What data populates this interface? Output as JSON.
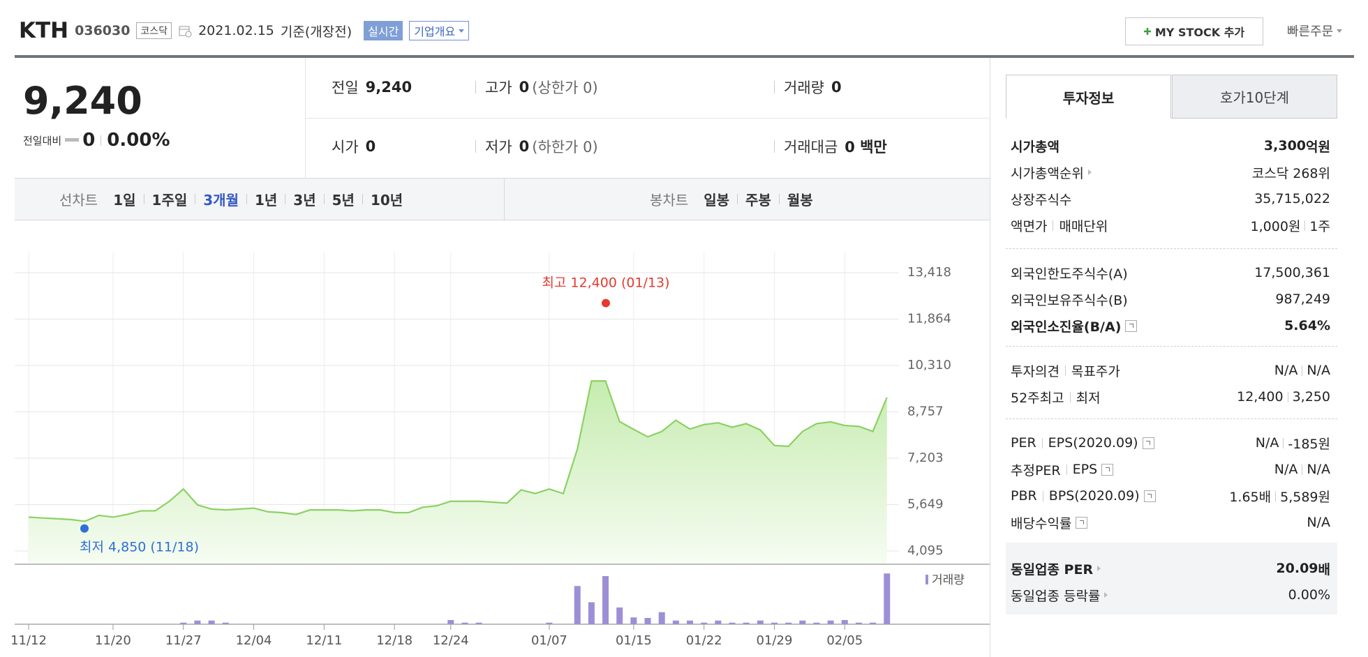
{
  "header": {
    "name": "KTH",
    "code": "036030",
    "market": "코스닥",
    "date": "2021.02.15",
    "basis": "기준(개장전)",
    "realtime": "실시간",
    "overview": "기업개요",
    "my_stock": "MY STOCK 추가",
    "quick_order": "빠른주문"
  },
  "quote": {
    "price": "9,240",
    "change_label": "전일대비",
    "change": "0",
    "change_rate": "0.00%",
    "rows": [
      [
        {
          "label": "전일",
          "value": "9,240"
        },
        {
          "label": "고가",
          "value": "0",
          "note": "(상한가 0)"
        },
        {
          "label": "거래량",
          "value": "0"
        }
      ],
      [
        {
          "label": "시가",
          "value": "0"
        },
        {
          "label": "저가",
          "value": "0",
          "note": "(하한가 0)"
        },
        {
          "label": "거래대금",
          "value": "0 백만"
        }
      ]
    ]
  },
  "periods": {
    "line_label": "선차트",
    "line": [
      {
        "label": "1일"
      },
      {
        "label": "1주일"
      },
      {
        "label": "3개월",
        "selected": true
      },
      {
        "label": "1년"
      },
      {
        "label": "3년"
      },
      {
        "label": "5년"
      },
      {
        "label": "10년"
      }
    ],
    "candle_label": "봉차트",
    "candle": [
      {
        "label": "일봉"
      },
      {
        "label": "주봉"
      },
      {
        "label": "월봉"
      }
    ]
  },
  "chart_data": {
    "type": "line",
    "color": "#8bd163",
    "categories": [
      "11/12",
      null,
      null,
      null,
      null,
      null,
      "11/20",
      null,
      null,
      null,
      null,
      "11/27",
      null,
      null,
      null,
      null,
      "12/04",
      null,
      null,
      null,
      null,
      "12/11",
      null,
      null,
      null,
      null,
      "12/18",
      null,
      null,
      null,
      "12/24",
      null,
      null,
      null,
      null,
      null,
      null,
      "01/07",
      null,
      null,
      null,
      null,
      null,
      "01/15",
      null,
      null,
      null,
      null,
      "01/22",
      null,
      null,
      null,
      null,
      "01/29",
      null,
      null,
      null,
      null,
      "02/05",
      null,
      null,
      null
    ],
    "values": [
      5230,
      5200,
      5175,
      5150,
      5090,
      5290,
      5230,
      5320,
      5440,
      5440,
      5760,
      6170,
      5640,
      5500,
      5470,
      5500,
      5530,
      5410,
      5380,
      5320,
      5470,
      5470,
      5470,
      5440,
      5470,
      5470,
      5380,
      5380,
      5560,
      5610,
      5760,
      5760,
      5760,
      5730,
      5700,
      6140,
      6020,
      6170,
      6020,
      7510,
      9790,
      9790,
      8430,
      8170,
      7920,
      8100,
      8475,
      8180,
      8330,
      8390,
      8240,
      8360,
      8150,
      7630,
      7600,
      8100,
      8360,
      8420,
      8300,
      8270,
      8100,
      9240
    ],
    "ylim": [
      4095,
      13418
    ],
    "yticks": [
      {
        "value": 4095,
        "label": "4,095"
      },
      {
        "value": 5649,
        "label": "5,649"
      },
      {
        "value": 7203,
        "label": "7,203"
      },
      {
        "value": 8757,
        "label": "8,757"
      },
      {
        "value": 10310,
        "label": "10,310"
      },
      {
        "value": 11864,
        "label": "11,864"
      },
      {
        "value": 13418,
        "label": "13,418"
      }
    ],
    "grid": true,
    "annotations": [
      {
        "text": "최고 12,400 (01/13)",
        "value": 12400,
        "color": "#e53a2f"
      },
      {
        "text": "최저 4,850 (11/18)",
        "value": 4850,
        "color": "#2f6fd8"
      }
    ],
    "volume": {
      "name": "거래량",
      "color": "#9d8fd6",
      "ylim": [
        0,
        100
      ],
      "values": [
        0,
        0,
        0,
        0,
        0,
        0,
        0,
        0,
        0,
        0,
        0,
        3,
        7,
        7,
        3,
        0,
        0,
        0,
        0,
        0,
        0,
        0,
        0,
        0,
        0,
        0,
        0,
        0,
        0,
        0,
        8,
        3,
        3,
        0,
        0,
        0,
        0,
        3,
        0,
        73,
        42,
        92,
        32,
        13,
        12,
        23,
        7,
        7,
        3,
        7,
        3,
        3,
        7,
        3,
        3,
        7,
        3,
        7,
        8,
        3,
        3,
        97
      ]
    }
  },
  "invest": {
    "tabs": [
      {
        "label": "투자정보",
        "active": true
      },
      {
        "label": "호가10단계"
      }
    ],
    "sections": [
      {
        "rows": [
          {
            "label": [
              "시가총액"
            ],
            "value": [
              "3,300"
            ],
            "unit": "억원",
            "bold": true
          },
          {
            "label": [
              "시가총액순위"
            ],
            "more": true,
            "value": [
              "코스닥 268위"
            ]
          },
          {
            "label": [
              "상장주식수"
            ],
            "value": [
              "35,715,022"
            ]
          },
          {
            "label": [
              "액면가",
              "매매단위"
            ],
            "value": [
              "1,000원",
              "1주"
            ]
          }
        ]
      },
      {
        "rows": [
          {
            "label": [
              "외국인한도주식수(A)"
            ],
            "value": [
              "17,500,361"
            ]
          },
          {
            "label": [
              "외국인보유주식수(B)"
            ],
            "value": [
              "987,249"
            ]
          },
          {
            "label": [
              "외국인소진율(B/A)"
            ],
            "help": true,
            "value": [
              "5.64%"
            ],
            "bold": true
          }
        ]
      },
      {
        "rows": [
          {
            "label": [
              "투자의견",
              "목표주가"
            ],
            "value": [
              "N/A",
              "N/A"
            ]
          },
          {
            "label": [
              "52주최고",
              "최저"
            ],
            "value": [
              "12,400",
              "3,250"
            ]
          }
        ]
      },
      {
        "rows": [
          {
            "label": [
              "PER",
              "EPS(2020.09)"
            ],
            "help": true,
            "value": [
              "N/A",
              "-185원"
            ]
          },
          {
            "label": [
              "추정PER",
              "EPS"
            ],
            "help": true,
            "value": [
              "N/A",
              "N/A"
            ]
          },
          {
            "label": [
              "PBR",
              "BPS(2020.09)"
            ],
            "help": true,
            "value": [
              "1.65배",
              "5,589원"
            ]
          },
          {
            "label": [
              "배당수익률"
            ],
            "help": true,
            "value": [
              "N/A"
            ]
          }
        ]
      },
      {
        "highlight": true,
        "rows": [
          {
            "label": [
              "동일업종 PER"
            ],
            "more": true,
            "value": [
              "20.09"
            ],
            "unit": "배",
            "bold": true
          },
          {
            "label": [
              "동일업종 등락률"
            ],
            "more": true,
            "value": [
              "0.00%"
            ]
          }
        ]
      }
    ]
  }
}
